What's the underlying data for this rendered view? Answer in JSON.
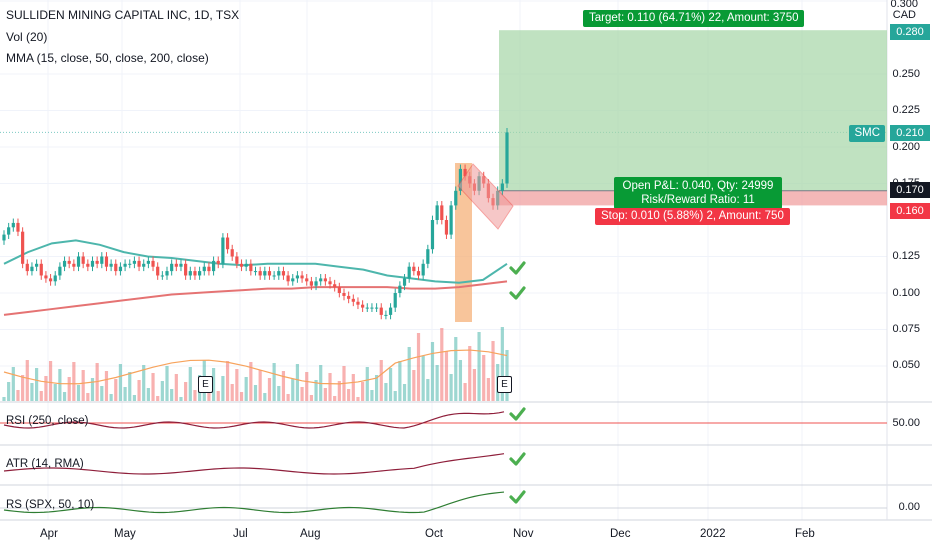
{
  "header": {
    "symbol_line": "SULLIDEN MINING CAPITAL INC, 1D, TSX",
    "vol_label": "Vol (20)",
    "mma_label": "MMA (15, close, 50, close, 200, close)"
  },
  "axis": {
    "currency": "CAD",
    "price_ticks": [
      "0.300",
      "0.250",
      "0.225",
      "0.200",
      "0.175",
      "0.125",
      "0.100",
      "0.075",
      "0.050"
    ],
    "months": [
      "Apr",
      "May",
      "Jul",
      "Aug",
      "Oct",
      "Nov",
      "Dec",
      "2022",
      "Feb"
    ]
  },
  "price_flags": {
    "target": "0.280",
    "smc_label": "SMC",
    "smc": "0.210",
    "current": "0.170",
    "stop": "0.160"
  },
  "trade": {
    "target_text": "Target: 0.110 (64.71%) 22, Amount: 3750",
    "pnl_text": "Open P&L: 0.040, Qty: 24999",
    "rr_text": "Risk/Reward Ratio: 11",
    "stop_text": "Stop: 0.010 (5.88%) 2, Amount: 750"
  },
  "earnings": {
    "label1": "E",
    "label2": "E"
  },
  "panes": {
    "rsi": {
      "label": "RSI (250, close)",
      "tick": "50.00"
    },
    "atr": {
      "label": "ATR (14, RMA)"
    },
    "rs": {
      "label": "RS (SPX, 50, 10)",
      "tick": "0.00"
    }
  },
  "colors": {
    "up": "#26a69a",
    "down": "#ef5350",
    "target_zone": "#a5d6a7",
    "stop_zone": "#ef9a9a",
    "ma_fast": "#4db6ac",
    "ma_slow": "#e57373",
    "check": "#4caf50",
    "orange_box": "#f5b27a"
  },
  "chart_data": {
    "type": "candlestick",
    "title": "SULLIDEN MINING CAPITAL INC, 1D, TSX",
    "ylim": [
      0.03,
      0.3
    ],
    "y_ticks": [
      0.05,
      0.075,
      0.1,
      0.125,
      0.175,
      0.2,
      0.225,
      0.25,
      0.3
    ],
    "x_range": [
      "2021-03-22",
      "2022-02-28"
    ],
    "months": [
      "Apr",
      "May",
      "Jul",
      "Aug",
      "Oct",
      "Nov",
      "Dec",
      "2022",
      "Feb"
    ],
    "candles_close": [
      0.14,
      0.145,
      0.148,
      0.142,
      0.12,
      0.115,
      0.118,
      0.12,
      0.112,
      0.11,
      0.108,
      0.112,
      0.118,
      0.122,
      0.12,
      0.118,
      0.125,
      0.12,
      0.118,
      0.122,
      0.12,
      0.125,
      0.118,
      0.12,
      0.115,
      0.118,
      0.12,
      0.12,
      0.122,
      0.118,
      0.12,
      0.122,
      0.118,
      0.112,
      0.112,
      0.115,
      0.12,
      0.118,
      0.12,
      0.112,
      0.115,
      0.112,
      0.115,
      0.118,
      0.115,
      0.122,
      0.12,
      0.138,
      0.13,
      0.125,
      0.12,
      0.118,
      0.12,
      0.115,
      0.115,
      0.112,
      0.115,
      0.112,
      0.112,
      0.115,
      0.112,
      0.108,
      0.11,
      0.112,
      0.11,
      0.108,
      0.105,
      0.108,
      0.11,
      0.108,
      0.106,
      0.104,
      0.1,
      0.098,
      0.096,
      0.094,
      0.092,
      0.09,
      0.09,
      0.09,
      0.09,
      0.085,
      0.085,
      0.09,
      0.1,
      0.105,
      0.11,
      0.118,
      0.115,
      0.112,
      0.12,
      0.13,
      0.15,
      0.16,
      0.15,
      0.14,
      0.16,
      0.17,
      0.185,
      0.18,
      0.175,
      0.17,
      0.18,
      0.175,
      0.165,
      0.16,
      0.17,
      0.175,
      0.21
    ],
    "ma_fast": [
      0.12,
      0.128,
      0.134,
      0.136,
      0.133,
      0.128,
      0.125,
      0.124,
      0.122,
      0.12,
      0.119,
      0.12,
      0.12,
      0.12,
      0.118,
      0.116,
      0.112,
      0.11,
      0.108,
      0.107,
      0.109,
      0.12
    ],
    "ma_slow": [
      0.085,
      0.087,
      0.089,
      0.091,
      0.093,
      0.095,
      0.097,
      0.099,
      0.1,
      0.101,
      0.102,
      0.103,
      0.103,
      0.104,
      0.104,
      0.104,
      0.104,
      0.103,
      0.103,
      0.104,
      0.106,
      0.108
    ],
    "position": {
      "entry": 0.17,
      "target": 0.28,
      "stop": 0.16,
      "last": 0.21
    },
    "indicators": [
      "Vol (20)",
      "MMA (15, close, 50, close, 200, close)",
      "RSI (250, close)",
      "ATR (14, RMA)",
      "RS (SPX, 50, 10)"
    ]
  }
}
